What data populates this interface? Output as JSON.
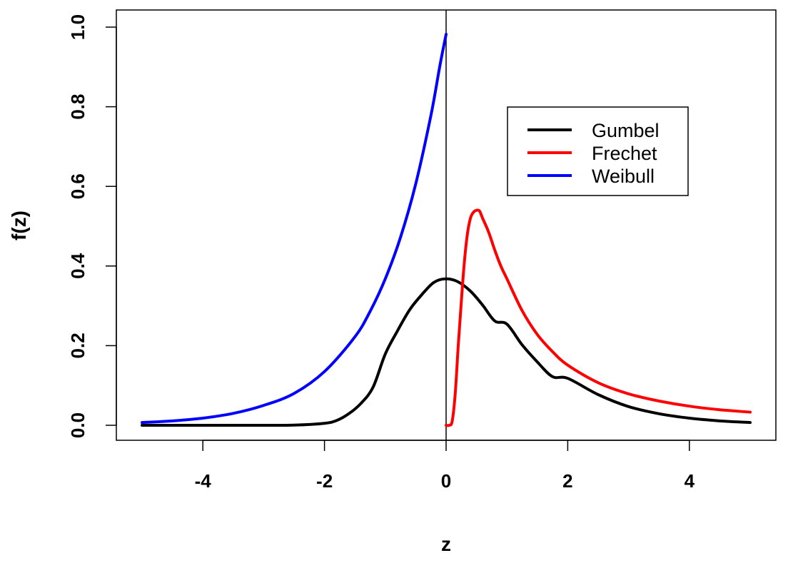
{
  "chart_data": {
    "type": "line",
    "title": "",
    "xlabel": "z",
    "ylabel": "f(z)",
    "xlim": [
      -5,
      5
    ],
    "ylim": [
      0,
      1
    ],
    "x_ticks": [
      "-4",
      "-2",
      "0",
      "2",
      "4"
    ],
    "y_ticks": [
      "0.0",
      "0.2",
      "0.4",
      "0.6",
      "0.8",
      "1.0"
    ],
    "grid": false,
    "reference_line_x": 0,
    "legend_position": "top-right",
    "series": [
      {
        "name": "Gumbel",
        "color": "#000000",
        "x": [
          -5,
          -4,
          -3,
          -2.5,
          -2,
          -1.8,
          -1.6,
          -1.4,
          -1.2,
          -1,
          -0.8,
          -0.6,
          -0.4,
          -0.2,
          0,
          0.2,
          0.4,
          0.6,
          0.8,
          1,
          1.25,
          1.5,
          1.75,
          2,
          2.5,
          3,
          3.5,
          4,
          4.5,
          5
        ],
        "y": [
          0,
          0,
          0,
          0.0005,
          0.005,
          0.012,
          0.029,
          0.055,
          0.096,
          0.179,
          0.237,
          0.29,
          0.328,
          0.359,
          0.368,
          0.36,
          0.337,
          0.302,
          0.262,
          0.254,
          0.202,
          0.159,
          0.122,
          0.118,
          0.077,
          0.047,
          0.029,
          0.018,
          0.011,
          0.007
        ]
      },
      {
        "name": "Frechet",
        "color": "#ff0000",
        "x": [
          0,
          0.05,
          0.1,
          0.15,
          0.2,
          0.25,
          0.3,
          0.35,
          0.4,
          0.45,
          0.5,
          0.55,
          0.6,
          0.7,
          0.8,
          0.9,
          1,
          1.25,
          1.5,
          1.75,
          2,
          2.5,
          3,
          3.5,
          4,
          4.5,
          5
        ],
        "y": [
          0,
          0,
          0.01,
          0.08,
          0.2,
          0.31,
          0.41,
          0.48,
          0.52,
          0.535,
          0.54,
          0.538,
          0.52,
          0.485,
          0.44,
          0.4,
          0.368,
          0.288,
          0.228,
          0.185,
          0.151,
          0.107,
          0.079,
          0.061,
          0.048,
          0.039,
          0.033
        ]
      },
      {
        "name": "Weibull",
        "color": "#0000ff",
        "x": [
          -5,
          -4.5,
          -4,
          -3.5,
          -3,
          -2.5,
          -2,
          -1.5,
          -1.25,
          -1,
          -0.75,
          -0.5,
          -0.25,
          -0.1,
          0
        ],
        "y": [
          0.007,
          0.011,
          0.018,
          0.03,
          0.05,
          0.08,
          0.135,
          0.222,
          0.286,
          0.368,
          0.472,
          0.606,
          0.778,
          0.905,
          0.982
        ]
      }
    ]
  }
}
